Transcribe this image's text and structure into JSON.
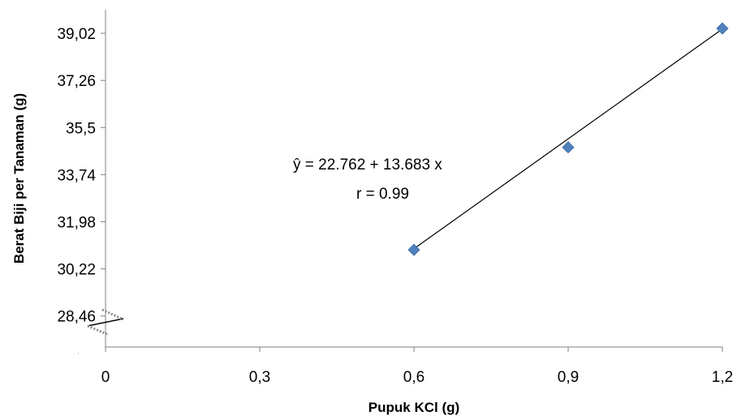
{
  "chart_data": {
    "type": "scatter",
    "xlabel": "Pupuk KCl (g)",
    "ylabel": "Berat Biji per Tanaman (g)",
    "x_ticks": [
      "0",
      "0,3",
      "0,6",
      "0,9",
      "1,2"
    ],
    "x_tick_values": [
      0,
      0.3,
      0.6,
      0.9,
      1.2
    ],
    "y_ticks": [
      "28,46",
      "30,22",
      "31,98",
      "33,74",
      "35,5",
      "37,26",
      "39,02"
    ],
    "y_tick_values": [
      28.46,
      30.22,
      31.98,
      33.74,
      35.5,
      37.26,
      39.02
    ],
    "xlim": [
      0,
      1.2
    ],
    "ylim": [
      27.3,
      39.9
    ],
    "y_axis_break": true,
    "points": [
      {
        "x": 0.6,
        "y": 30.93
      },
      {
        "x": 0.9,
        "y": 34.76
      },
      {
        "x": 1.2,
        "y": 39.2
      }
    ],
    "trendline": {
      "intercept": 22.762,
      "slope": 13.683
    },
    "annotations": {
      "equation": "ŷ =  22.762 + 13.683 x",
      "r_value": "r = 0.99"
    },
    "grid": false,
    "legend": "none",
    "colors": {
      "marker": "#4f81bd",
      "marker_edge": "#3a6aa6",
      "line": "#000000",
      "axis": "#808080"
    }
  }
}
